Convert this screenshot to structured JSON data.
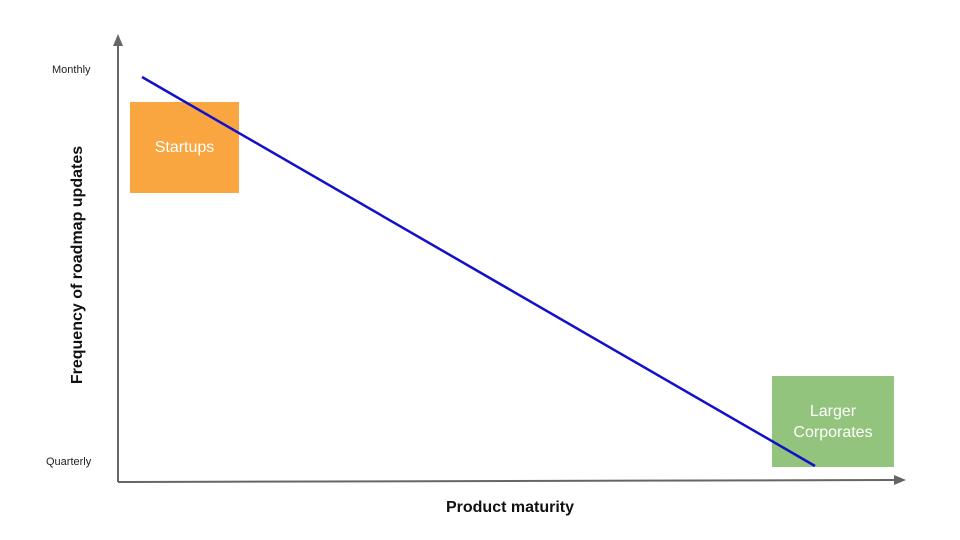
{
  "diagram": {
    "x_axis_title": "Product maturity",
    "y_axis_title": "Frequency of roadmap updates",
    "y_ticks": {
      "top": "Monthly",
      "bottom": "Quarterly"
    },
    "boxes": {
      "startups": {
        "label": "Startups",
        "color": "#f9a640"
      },
      "corporates": {
        "line1": "Larger",
        "line2": "Corporates",
        "color": "#93c47d"
      }
    },
    "colors": {
      "axis": "#666666",
      "trend_line": "#1111cc"
    }
  }
}
